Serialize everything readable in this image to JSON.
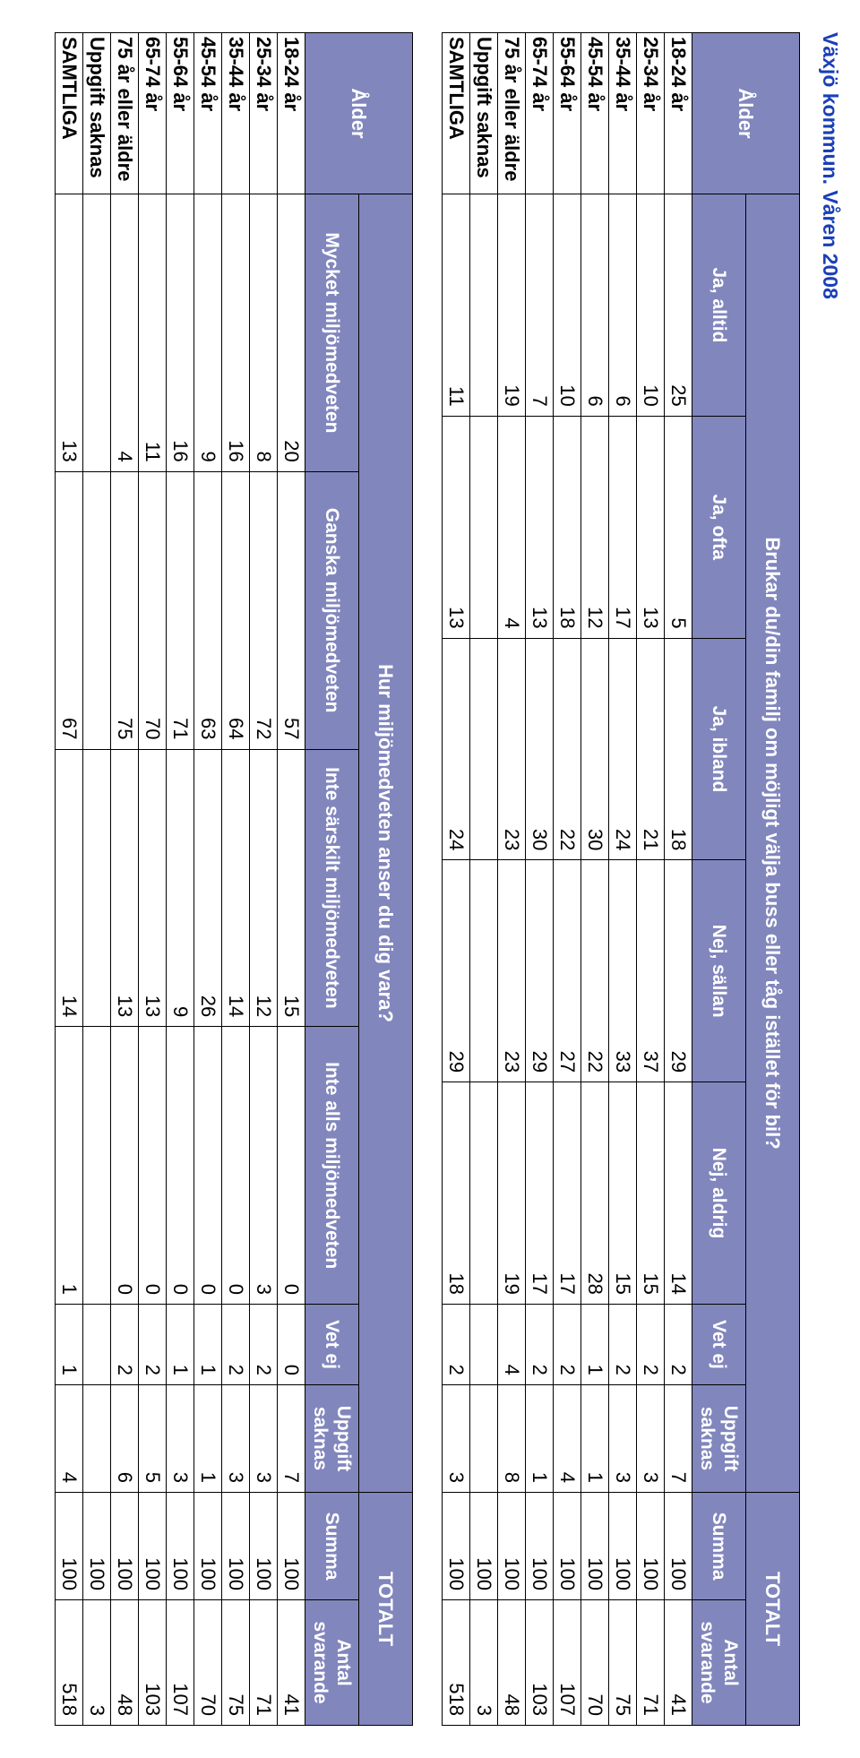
{
  "page_title": "Växjö kommun. Våren 2008",
  "colors": {
    "header_bg": "#8186bd",
    "header_fg": "#ffffff",
    "title_fg": "#1a3fb8",
    "border": "#000000",
    "bg": "#ffffff",
    "text": "#000000"
  },
  "table1": {
    "row_header": "Ålder",
    "question": "Brukar du/din familj om möjligt välja buss eller tåg istället för bil?",
    "totalt_label": "TOTALT",
    "columns": [
      "Ja, alltid",
      "Ja, ofta",
      "Ja, ibland",
      "Nej, sällan",
      "Nej, aldrig",
      "Vet ej",
      "Uppgift saknas",
      "Summa",
      "Antal svarande"
    ],
    "rows": [
      {
        "label": "18-24 år",
        "v": [
          "25",
          "5",
          "18",
          "29",
          "14",
          "2",
          "7",
          "100",
          "41"
        ]
      },
      {
        "label": "25-34 år",
        "v": [
          "10",
          "13",
          "21",
          "37",
          "15",
          "2",
          "3",
          "100",
          "71"
        ]
      },
      {
        "label": "35-44 år",
        "v": [
          "6",
          "17",
          "24",
          "33",
          "15",
          "2",
          "3",
          "100",
          "75"
        ]
      },
      {
        "label": "45-54 år",
        "v": [
          "6",
          "12",
          "30",
          "22",
          "28",
          "1",
          "1",
          "100",
          "70"
        ]
      },
      {
        "label": "55-64 år",
        "v": [
          "10",
          "18",
          "22",
          "27",
          "17",
          "2",
          "4",
          "100",
          "107"
        ]
      },
      {
        "label": "65-74 år",
        "v": [
          "7",
          "13",
          "30",
          "29",
          "17",
          "2",
          "1",
          "100",
          "103"
        ]
      },
      {
        "label": "75 år eller äldre",
        "v": [
          "19",
          "4",
          "23",
          "23",
          "19",
          "4",
          "8",
          "100",
          "48"
        ]
      },
      {
        "label": "Uppgift saknas",
        "v": [
          "",
          "",
          "",
          "",
          "",
          "",
          "",
          "100",
          "3"
        ]
      },
      {
        "label": "SAMTLIGA",
        "v": [
          "11",
          "13",
          "24",
          "29",
          "18",
          "2",
          "3",
          "100",
          "518"
        ]
      }
    ]
  },
  "table2": {
    "row_header": "Ålder",
    "question": "Hur miljömedveten anser du dig vara?",
    "totalt_label": "TOTALT",
    "columns": [
      "Mycket miljömedveten",
      "Ganska miljömedveten",
      "Inte särskilt miljömedveten",
      "Inte alls miljömedveten",
      "Vet ej",
      "Uppgift saknas",
      "Summa",
      "Antal svarande"
    ],
    "rows": [
      {
        "label": "18-24 år",
        "v": [
          "20",
          "57",
          "15",
          "0",
          "0",
          "7",
          "100",
          "41"
        ]
      },
      {
        "label": "25-34 år",
        "v": [
          "8",
          "72",
          "12",
          "3",
          "2",
          "3",
          "100",
          "71"
        ]
      },
      {
        "label": "35-44 år",
        "v": [
          "16",
          "64",
          "14",
          "0",
          "2",
          "3",
          "100",
          "75"
        ]
      },
      {
        "label": "45-54 år",
        "v": [
          "9",
          "63",
          "26",
          "0",
          "1",
          "1",
          "100",
          "70"
        ]
      },
      {
        "label": "55-64 år",
        "v": [
          "16",
          "71",
          "9",
          "0",
          "1",
          "3",
          "100",
          "107"
        ]
      },
      {
        "label": "65-74 år",
        "v": [
          "11",
          "70",
          "13",
          "0",
          "2",
          "5",
          "100",
          "103"
        ]
      },
      {
        "label": "75 år eller äldre",
        "v": [
          "4",
          "75",
          "13",
          "0",
          "2",
          "6",
          "100",
          "48"
        ]
      },
      {
        "label": "Uppgift saknas",
        "v": [
          "",
          "",
          "",
          "",
          "",
          "",
          "100",
          "3"
        ]
      },
      {
        "label": "SAMTLIGA",
        "v": [
          "13",
          "67",
          "14",
          "1",
          "1",
          "4",
          "100",
          "518"
        ]
      }
    ]
  }
}
